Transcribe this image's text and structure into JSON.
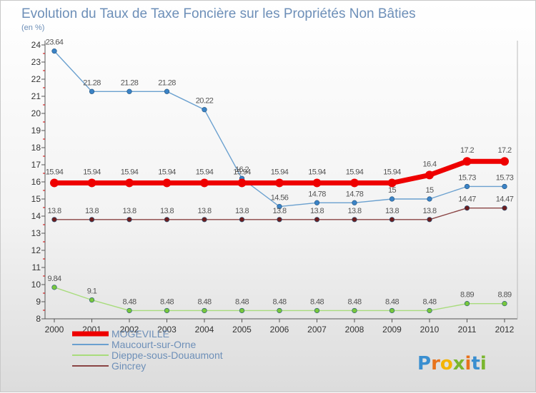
{
  "chart_data": {
    "type": "line",
    "title": "Evolution du Taux de Taxe Foncière sur les Propriétés Non Bâties",
    "subtitle": "(en %)",
    "xlabel": "",
    "ylabel": "(en %)",
    "categories": [
      "2000",
      "2001",
      "2002",
      "2003",
      "2004",
      "2005",
      "2006",
      "2007",
      "2008",
      "2009",
      "2010",
      "2011",
      "2012"
    ],
    "ylim": [
      8,
      24
    ],
    "yticks": [
      "8",
      "9",
      "10",
      "11",
      "12",
      "13",
      "14",
      "15",
      "16",
      "17",
      "18",
      "19",
      "20",
      "21",
      "22",
      "23",
      "24"
    ],
    "series": [
      {
        "name": "Maucourt-sur-Orne",
        "color": "#6aa0cf",
        "point_color": "#3b83c6",
        "values": [
          23.64,
          21.28,
          21.28,
          21.28,
          20.22,
          16.2,
          14.56,
          14.78,
          14.78,
          15,
          15,
          15.73,
          15.73
        ],
        "labels": [
          "23.64",
          "21.28",
          "21.28",
          "21.28",
          "20.22",
          "16.2",
          "14.56",
          "14.78",
          "14.78",
          "15",
          "15",
          "15.73",
          "15.73"
        ]
      },
      {
        "name": "Dieppe-sous-Douaumont",
        "color": "#a8dc7c",
        "point_color": "#78c83c",
        "values": [
          9.84,
          9.1,
          8.48,
          8.48,
          8.48,
          8.48,
          8.48,
          8.48,
          8.48,
          8.48,
          8.48,
          8.89,
          8.89
        ],
        "labels": [
          "9.84",
          "9.1",
          "8.48",
          "8.48",
          "8.48",
          "8.48",
          "8.48",
          "8.48",
          "8.48",
          "8.48",
          "8.48",
          "8.89",
          "8.89"
        ]
      },
      {
        "name": "Gincrey",
        "color": "#8a4444",
        "point_color": "#6e1e1e",
        "values": [
          13.8,
          13.8,
          13.8,
          13.8,
          13.8,
          13.8,
          13.8,
          13.8,
          13.8,
          13.8,
          13.8,
          14.47,
          14.47
        ],
        "labels": [
          "13.8",
          "13.8",
          "13.8",
          "13.8",
          "13.8",
          "13.8",
          "13.8",
          "13.8",
          "13.8",
          "13.8",
          "13.8",
          "14.47",
          "14.47"
        ]
      },
      {
        "name": "MOGEVILLE",
        "color": "#ee0000",
        "point_color": "#ee0000",
        "values": [
          15.94,
          15.94,
          15.94,
          15.94,
          15.94,
          15.94,
          15.94,
          15.94,
          15.94,
          15.94,
          16.4,
          17.2,
          17.2
        ],
        "labels": [
          "15.94",
          "15.94",
          "15.94",
          "15.94",
          "15.94",
          "15.94",
          "15.94",
          "15.94",
          "15.94",
          "15.94",
          "16.4",
          "17.2",
          "17.2"
        ]
      }
    ],
    "legend": {
      "position": "bottom-left",
      "entries": [
        "MOGEVILLE",
        "Maucourt-sur-Orne",
        "Dieppe-sous-Douaumont",
        "Gincrey"
      ]
    }
  },
  "logo": {
    "letters": [
      "P",
      "r",
      "o",
      "x",
      "i",
      "t",
      "i"
    ],
    "colors": [
      "#3a8fd0",
      "#e8731c",
      "#f4b400",
      "#7ab62e",
      "#e8731c",
      "#3a8fd0",
      "#7ab62e"
    ]
  }
}
